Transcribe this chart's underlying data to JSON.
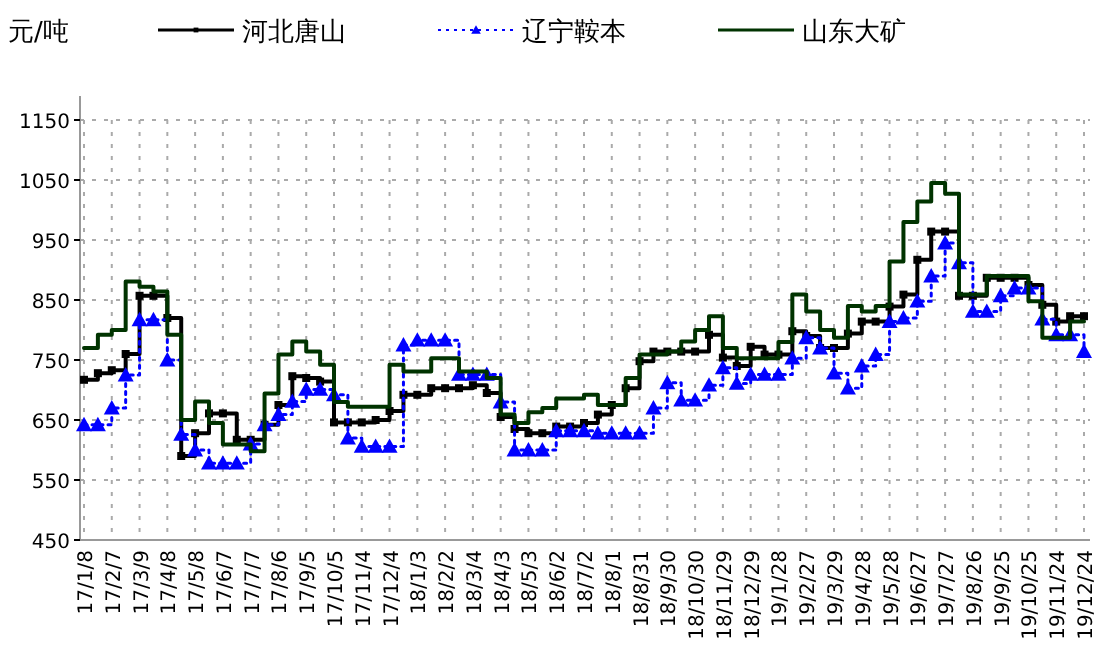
{
  "chart_data": {
    "type": "step",
    "ylabel": "元/吨",
    "legend": "top",
    "grid": true,
    "categories": [
      "17/1/8",
      null,
      "17/2/7",
      null,
      "17/3/9",
      null,
      "17/4/8",
      null,
      "17/5/8",
      null,
      "17/6/7",
      null,
      "17/7/7",
      null,
      "17/8/6",
      null,
      "17/9/5",
      null,
      "17/10/5",
      null,
      "17/11/4",
      null,
      "17/12/4",
      null,
      "18/1/3",
      null,
      "18/2/2",
      null,
      "18/3/4",
      null,
      "18/4/3",
      null,
      "18/5/3",
      null,
      "18/6/2",
      null,
      "18/7/2",
      null,
      "18/8/1",
      null,
      "18/8/31",
      null,
      "18/9/30",
      null,
      "18/10/30",
      null,
      "18/11/29",
      null,
      "18/12/29",
      null,
      "19/1/28",
      null,
      "19/2/27",
      null,
      "19/3/29",
      null,
      "19/4/28",
      null,
      "19/5/28",
      null,
      "19/6/27",
      null,
      "19/7/27",
      null,
      "19/8/26",
      null,
      "19/9/25",
      null,
      "19/10/25",
      null,
      "19/11/24",
      null,
      "19/12/24"
    ],
    "ylim": [
      450,
      1150
    ],
    "yticks": [
      450,
      550,
      650,
      750,
      850,
      950,
      1050,
      1150
    ],
    "series": [
      {
        "name": "河北唐山",
        "color": "#000000",
        "marker": "square",
        "line_style": "solid",
        "values": [
          717,
          728,
          733,
          760,
          857,
          857,
          820,
          590,
          628,
          661,
          661,
          617,
          617,
          642,
          675,
          723,
          720,
          714,
          646,
          646,
          646,
          650,
          665,
          692,
          692,
          703,
          703,
          703,
          708,
          695,
          655,
          635,
          628,
          628,
          639,
          639,
          645,
          659,
          675,
          703,
          748,
          764,
          764,
          764,
          764,
          792,
          754,
          740,
          772,
          759,
          759,
          798,
          790,
          770,
          770,
          794,
          814,
          814,
          839,
          859,
          917,
          964,
          964,
          857,
          857,
          887,
          887,
          887,
          875,
          842,
          814,
          823,
          823
        ]
      },
      {
        "name": "辽宁鞍本",
        "color": "#0000ff",
        "marker": "triangle",
        "line_style": "dotted",
        "values": [
          642,
          642,
          670,
          725,
          817,
          817,
          750,
          626,
          600,
          578,
          578,
          578,
          610,
          642,
          659,
          681,
          701,
          701,
          692,
          620,
          606,
          606,
          606,
          775,
          783,
          783,
          783,
          726,
          726,
          726,
          680,
          600,
          600,
          600,
          632,
          632,
          632,
          628,
          628,
          628,
          628,
          670,
          712,
          683,
          683,
          708,
          737,
          711,
          726,
          726,
          726,
          753,
          787,
          770,
          728,
          703,
          740,
          759,
          814,
          820,
          848,
          890,
          945,
          912,
          831,
          831,
          857,
          870,
          870,
          818,
          792,
          792,
          764
        ]
      },
      {
        "name": "山东大矿",
        "color": "#003300",
        "marker": "none",
        "line_style": "solid",
        "values": [
          770,
          792,
          800,
          881,
          872,
          864,
          792,
          650,
          681,
          645,
          609,
          609,
          598,
          694,
          759,
          781,
          764,
          742,
          680,
          672,
          672,
          672,
          742,
          731,
          731,
          753,
          753,
          731,
          731,
          720,
          659,
          645,
          663,
          670,
          686,
          686,
          692,
          675,
          675,
          720,
          759,
          759,
          764,
          781,
          800,
          823,
          770,
          753,
          753,
          753,
          780,
          859,
          831,
          800,
          787,
          840,
          831,
          840,
          914,
          980,
          1014,
          1045,
          1027,
          859,
          859,
          890,
          890,
          890,
          848,
          787,
          787,
          814,
          814
        ]
      }
    ]
  }
}
